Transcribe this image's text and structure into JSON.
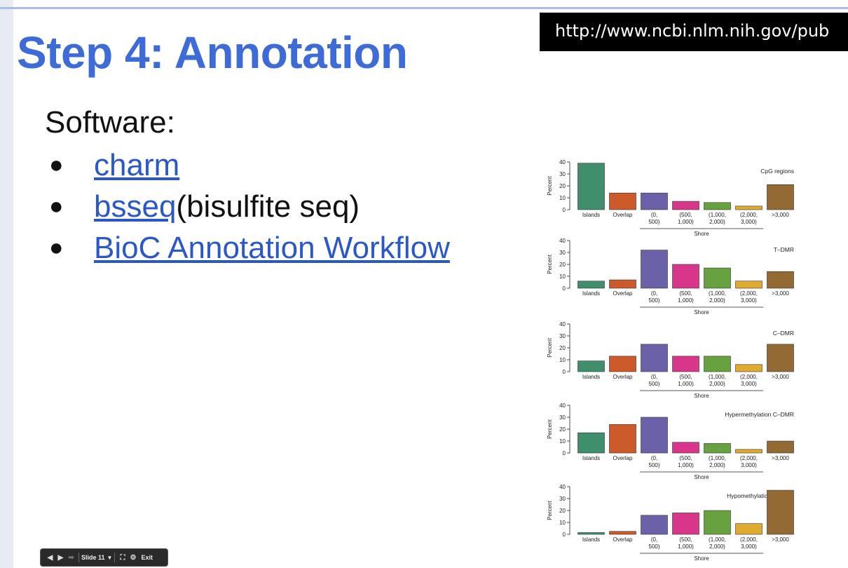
{
  "slide": {
    "title": "Step 4: Annotation",
    "url": "http://www.ncbi.nlm.nih.gov/pub",
    "software_label": "Software:",
    "bullets": [
      {
        "link": "charm",
        "suffix": ""
      },
      {
        "link": "bsseq",
        "suffix": " (bisulfite seq)"
      },
      {
        "link": "BioC Annotation Workflow",
        "suffix": ""
      }
    ]
  },
  "controls": {
    "slide_label": "Slide 11",
    "exit_label": "Exit",
    "icons": [
      "prev-arrow-icon",
      "play-icon",
      "next-arrow-icon",
      "dropdown-caret-icon",
      "fullscreen-icon",
      "gear-icon"
    ]
  },
  "chart_data": [
    {
      "type": "bar",
      "title": "CpG regions",
      "ylabel": "Percent",
      "ylim": [
        0,
        40
      ],
      "yticks": [
        0,
        10,
        20,
        30,
        40
      ],
      "categories": [
        "Islands",
        "Overlap",
        "(0, 500)",
        "(500, 1,000)",
        "(1,000, 2,000)",
        "(2,000, 3,000)",
        ">3,000"
      ],
      "values": [
        39,
        14,
        14,
        7,
        6,
        3,
        21
      ],
      "group_label": "Shore",
      "colors": [
        "#3f8f6c",
        "#cc5a2b",
        "#6a61a8",
        "#d8368b",
        "#68a13f",
        "#dfaa2d",
        "#946a34"
      ]
    },
    {
      "type": "bar",
      "title": "T–DMR",
      "ylabel": "Percent",
      "ylim": [
        0,
        40
      ],
      "yticks": [
        0,
        10,
        20,
        30,
        40
      ],
      "categories": [
        "Islands",
        "Overlap",
        "(0, 500)",
        "(500, 1,000)",
        "(1,000, 2,000)",
        "(2,000, 3,000)",
        ">3,000"
      ],
      "values": [
        6,
        7,
        32,
        20,
        17,
        6,
        14
      ],
      "group_label": "Shore",
      "colors": [
        "#3f8f6c",
        "#cc5a2b",
        "#6a61a8",
        "#d8368b",
        "#68a13f",
        "#dfaa2d",
        "#946a34"
      ]
    },
    {
      "type": "bar",
      "title": "C–DMR",
      "ylabel": "Percent",
      "ylim": [
        0,
        40
      ],
      "yticks": [
        0,
        10,
        20,
        30,
        40
      ],
      "categories": [
        "Islands",
        "Overlap",
        "(0, 500)",
        "(500, 1,000)",
        "(1,000, 2,000)",
        "(2,000, 3,000)",
        ">3,000"
      ],
      "values": [
        9,
        13,
        23,
        13,
        13,
        6,
        23
      ],
      "group_label": "Shore",
      "colors": [
        "#3f8f6c",
        "#cc5a2b",
        "#6a61a8",
        "#d8368b",
        "#68a13f",
        "#dfaa2d",
        "#946a34"
      ]
    },
    {
      "type": "bar",
      "title": "Hypermethylation C–DMR",
      "ylabel": "Percent",
      "ylim": [
        0,
        40
      ],
      "yticks": [
        0,
        10,
        20,
        30,
        40
      ],
      "categories": [
        "Islands",
        "Overlap",
        "(0, 500)",
        "(500, 1,000)",
        "(1,000, 2,000)",
        "(2,000, 3,000)",
        ">3,000"
      ],
      "values": [
        17,
        24,
        30,
        9,
        8,
        3,
        10
      ],
      "group_label": "Shore",
      "colors": [
        "#3f8f6c",
        "#cc5a2b",
        "#6a61a8",
        "#d8368b",
        "#68a13f",
        "#dfaa2d",
        "#946a34"
      ]
    },
    {
      "type": "bar",
      "title": "Hypomethylation C–DMR",
      "ylabel": "Percent",
      "ylim": [
        0,
        40
      ],
      "yticks": [
        0,
        10,
        20,
        30,
        40
      ],
      "categories": [
        "Islands",
        "Overlap",
        "(0, 500)",
        "(500, 1,000)",
        "(1,000, 2,000)",
        "(2,000, 3,000)",
        ">3,000"
      ],
      "values": [
        1.5,
        2.5,
        16,
        18,
        20,
        9,
        37
      ],
      "group_label": "Shore",
      "colors": [
        "#3f8f6c",
        "#cc5a2b",
        "#6a61a8",
        "#d8368b",
        "#68a13f",
        "#dfaa2d",
        "#946a34"
      ]
    }
  ]
}
